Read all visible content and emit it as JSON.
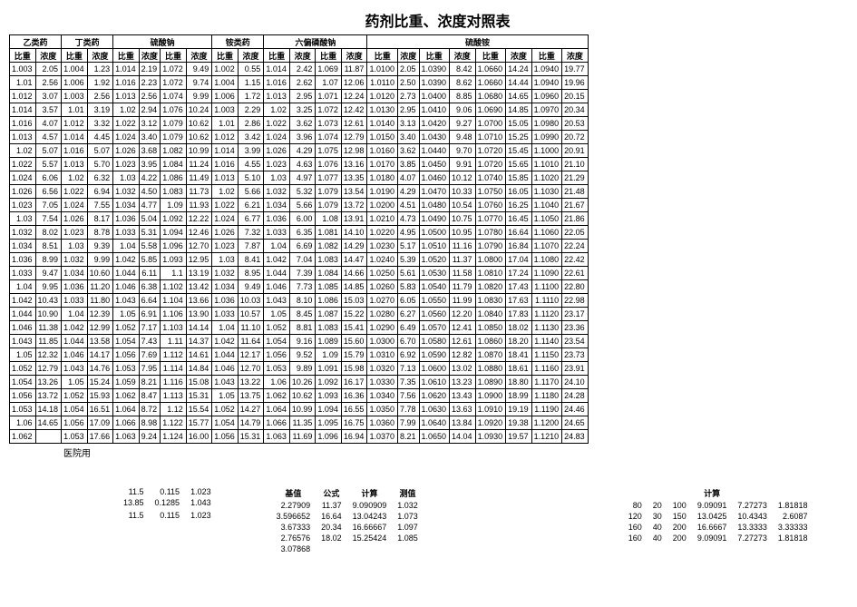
{
  "title": "药剂比重、浓度对照表",
  "footer_note": "医院用",
  "groups": [
    {
      "name": "乙类药",
      "pairs": 1
    },
    {
      "name": "丁类药",
      "pairs": 1
    },
    {
      "name": "硫酸钠",
      "pairs": 2
    },
    {
      "name": "铵类药",
      "pairs": 1
    },
    {
      "name": "六偏磷酸钠",
      "pairs": 2
    },
    {
      "name": "硫酸铵",
      "pairs": 4
    }
  ],
  "sub_headers": [
    "比重",
    "浓度"
  ],
  "rows": [
    [
      "1.003",
      "2.05",
      "1.004",
      "1.23",
      "1.014",
      "2.19",
      "1.072",
      "9.49",
      "1.002",
      "0.55",
      "1.014",
      "2.42",
      "1.069",
      "11.87",
      "1.0100",
      "2.05",
      "1.0390",
      "8.42",
      "1.0660",
      "14.24",
      "1.0940",
      "19.77"
    ],
    [
      "1.01",
      "2.56",
      "1.006",
      "1.92",
      "1.016",
      "2.23",
      "1.072",
      "9.74",
      "1.004",
      "1.15",
      "1.016",
      "2.62",
      "1.07",
      "12.06",
      "1.0110",
      "2.50",
      "1.0390",
      "8.62",
      "1.0660",
      "14.44",
      "1.0940",
      "19.96"
    ],
    [
      "1.012",
      "3.07",
      "1.003",
      "2.56",
      "1.013",
      "2.56",
      "1.074",
      "9.99",
      "1.006",
      "1.72",
      "1.013",
      "2.95",
      "1.071",
      "12.24",
      "1.0120",
      "2.73",
      "1.0400",
      "8.85",
      "1.0680",
      "14.65",
      "1.0960",
      "20.15"
    ],
    [
      "1.014",
      "3.57",
      "1.01",
      "3.19",
      "1.02",
      "2.94",
      "1.076",
      "10.24",
      "1.003",
      "2.29",
      "1.02",
      "3.25",
      "1.072",
      "12.42",
      "1.0130",
      "2.95",
      "1.0410",
      "9.06",
      "1.0690",
      "14.85",
      "1.0970",
      "20.34"
    ],
    [
      "1.016",
      "4.07",
      "1.012",
      "3.32",
      "1.022",
      "3.12",
      "1.079",
      "10.62",
      "1.01",
      "2.86",
      "1.022",
      "3.62",
      "1.073",
      "12.61",
      "1.0140",
      "3.13",
      "1.0420",
      "9.27",
      "1.0700",
      "15.05",
      "1.0980",
      "20.53"
    ],
    [
      "1.013",
      "4.57",
      "1.014",
      "4.45",
      "1.024",
      "3.40",
      "1.079",
      "10.62",
      "1.012",
      "3.42",
      "1.024",
      "3.96",
      "1.074",
      "12.79",
      "1.0150",
      "3.40",
      "1.0430",
      "9.48",
      "1.0710",
      "15.25",
      "1.0990",
      "20.72"
    ],
    [
      "1.02",
      "5.07",
      "1.016",
      "5.07",
      "1.026",
      "3.68",
      "1.082",
      "10.99",
      "1.014",
      "3.99",
      "1.026",
      "4.29",
      "1.075",
      "12.98",
      "1.0160",
      "3.62",
      "1.0440",
      "9.70",
      "1.0720",
      "15.45",
      "1.1000",
      "20.91"
    ],
    [
      "1.022",
      "5.57",
      "1.013",
      "5.70",
      "1.023",
      "3.95",
      "1.084",
      "11.24",
      "1.016",
      "4.55",
      "1.023",
      "4.63",
      "1.076",
      "13.16",
      "1.0170",
      "3.85",
      "1.0450",
      "9.91",
      "1.0720",
      "15.65",
      "1.1010",
      "21.10"
    ],
    [
      "1.024",
      "6.06",
      "1.02",
      "6.32",
      "1.03",
      "4.22",
      "1.086",
      "11.49",
      "1.013",
      "5.10",
      "1.03",
      "4.97",
      "1.077",
      "13.35",
      "1.0180",
      "4.07",
      "1.0460",
      "10.12",
      "1.0740",
      "15.85",
      "1.1020",
      "21.29"
    ],
    [
      "1.026",
      "6.56",
      "1.022",
      "6.94",
      "1.032",
      "4.50",
      "1.083",
      "11.73",
      "1.02",
      "5.66",
      "1.032",
      "5.32",
      "1.079",
      "13.54",
      "1.0190",
      "4.29",
      "1.0470",
      "10.33",
      "1.0750",
      "16.05",
      "1.1030",
      "21.48"
    ],
    [
      "1.023",
      "7.05",
      "1.024",
      "7.55",
      "1.034",
      "4.77",
      "1.09",
      "11.93",
      "1.022",
      "6.21",
      "1.034",
      "5.66",
      "1.079",
      "13.72",
      "1.0200",
      "4.51",
      "1.0480",
      "10.54",
      "1.0760",
      "16.25",
      "1.1040",
      "21.67"
    ],
    [
      "1.03",
      "7.54",
      "1.026",
      "8.17",
      "1.036",
      "5.04",
      "1.092",
      "12.22",
      "1.024",
      "6.77",
      "1.036",
      "6.00",
      "1.08",
      "13.91",
      "1.0210",
      "4.73",
      "1.0490",
      "10.75",
      "1.0770",
      "16.45",
      "1.1050",
      "21.86"
    ],
    [
      "1.032",
      "8.02",
      "1.023",
      "8.78",
      "1.033",
      "5.31",
      "1.094",
      "12.46",
      "1.026",
      "7.32",
      "1.033",
      "6.35",
      "1.081",
      "14.10",
      "1.0220",
      "4.95",
      "1.0500",
      "10.95",
      "1.0780",
      "16.64",
      "1.1060",
      "22.05"
    ],
    [
      "1.034",
      "8.51",
      "1.03",
      "9.39",
      "1.04",
      "5.58",
      "1.096",
      "12.70",
      "1.023",
      "7.87",
      "1.04",
      "6.69",
      "1.082",
      "14.29",
      "1.0230",
      "5.17",
      "1.0510",
      "11.16",
      "1.0790",
      "16.84",
      "1.1070",
      "22.24"
    ],
    [
      "1.036",
      "8.99",
      "1.032",
      "9.99",
      "1.042",
      "5.85",
      "1.093",
      "12.95",
      "1.03",
      "8.41",
      "1.042",
      "7.04",
      "1.083",
      "14.47",
      "1.0240",
      "5.39",
      "1.0520",
      "11.37",
      "1.0800",
      "17.04",
      "1.1080",
      "22.42"
    ],
    [
      "1.033",
      "9.47",
      "1.034",
      "10.60",
      "1.044",
      "6.11",
      "1.1",
      "13.19",
      "1.032",
      "8.95",
      "1.044",
      "7.39",
      "1.084",
      "14.66",
      "1.0250",
      "5.61",
      "1.0530",
      "11.58",
      "1.0810",
      "17.24",
      "1.1090",
      "22.61"
    ],
    [
      "1.04",
      "9.95",
      "1.036",
      "11.20",
      "1.046",
      "6.38",
      "1.102",
      "13.42",
      "1.034",
      "9.49",
      "1.046",
      "7.73",
      "1.085",
      "14.85",
      "1.0260",
      "5.83",
      "1.0540",
      "11.79",
      "1.0820",
      "17.43",
      "1.1100",
      "22.80"
    ],
    [
      "1.042",
      "10.43",
      "1.033",
      "11.80",
      "1.043",
      "6.64",
      "1.104",
      "13.66",
      "1.036",
      "10.03",
      "1.043",
      "8.10",
      "1.086",
      "15.03",
      "1.0270",
      "6.05",
      "1.0550",
      "11.99",
      "1.0830",
      "17.63",
      "1.1110",
      "22.98"
    ],
    [
      "1.044",
      "10.90",
      "1.04",
      "12.39",
      "1.05",
      "6.91",
      "1.106",
      "13.90",
      "1.033",
      "10.57",
      "1.05",
      "8.45",
      "1.087",
      "15.22",
      "1.0280",
      "6.27",
      "1.0560",
      "12.20",
      "1.0840",
      "17.83",
      "1.1120",
      "23.17"
    ],
    [
      "1.046",
      "11.38",
      "1.042",
      "12.99",
      "1.052",
      "7.17",
      "1.103",
      "14.14",
      "1.04",
      "11.10",
      "1.052",
      "8.81",
      "1.083",
      "15.41",
      "1.0290",
      "6.49",
      "1.0570",
      "12.41",
      "1.0850",
      "18.02",
      "1.1130",
      "23.36"
    ],
    [
      "1.043",
      "11.85",
      "1.044",
      "13.58",
      "1.054",
      "7.43",
      "1.11",
      "14.37",
      "1.042",
      "11.64",
      "1.054",
      "9.16",
      "1.089",
      "15.60",
      "1.0300",
      "6.70",
      "1.0580",
      "12.61",
      "1.0860",
      "18.20",
      "1.1140",
      "23.54"
    ],
    [
      "1.05",
      "12.32",
      "1.046",
      "14.17",
      "1.056",
      "7.69",
      "1.112",
      "14.61",
      "1.044",
      "12.17",
      "1.056",
      "9.52",
      "1.09",
      "15.79",
      "1.0310",
      "6.92",
      "1.0590",
      "12.82",
      "1.0870",
      "18.41",
      "1.1150",
      "23.73"
    ],
    [
      "1.052",
      "12.79",
      "1.043",
      "14.76",
      "1.053",
      "7.95",
      "1.114",
      "14.84",
      "1.046",
      "12.70",
      "1.053",
      "9.89",
      "1.091",
      "15.98",
      "1.0320",
      "7.13",
      "1.0600",
      "13.02",
      "1.0880",
      "18.61",
      "1.1160",
      "23.91"
    ],
    [
      "1.054",
      "13.26",
      "1.05",
      "15.24",
      "1.059",
      "8.21",
      "1.116",
      "15.08",
      "1.043",
      "13.22",
      "1.06",
      "10.26",
      "1.092",
      "16.17",
      "1.0330",
      "7.35",
      "1.0610",
      "13.23",
      "1.0890",
      "18.80",
      "1.1170",
      "24.10"
    ],
    [
      "1.056",
      "13.72",
      "1.052",
      "15.93",
      "1.062",
      "8.47",
      "1.113",
      "15.31",
      "1.05",
      "13.75",
      "1.062",
      "10.62",
      "1.093",
      "16.36",
      "1.0340",
      "7.56",
      "1.0620",
      "13.43",
      "1.0900",
      "18.99",
      "1.1180",
      "24.28"
    ],
    [
      "1.053",
      "14.18",
      "1.054",
      "16.51",
      "1.064",
      "8.72",
      "1.12",
      "15.54",
      "1.052",
      "14.27",
      "1.064",
      "10.99",
      "1.094",
      "16.55",
      "1.0350",
      "7.78",
      "1.0630",
      "13.63",
      "1.0910",
      "19.19",
      "1.1190",
      "24.46"
    ],
    [
      "1.06",
      "14.65",
      "1.056",
      "17.09",
      "1.066",
      "8.98",
      "1.122",
      "15.77",
      "1.054",
      "14.79",
      "1.066",
      "11.35",
      "1.095",
      "16.75",
      "1.0360",
      "7.99",
      "1.0640",
      "13.84",
      "1.0920",
      "19.38",
      "1.1200",
      "24.65"
    ],
    [
      "1.062",
      "",
      "1.053",
      "17.66",
      "1.063",
      "9.24",
      "1.124",
      "16.00",
      "1.056",
      "15.31",
      "1.063",
      "11.69",
      "1.096",
      "16.94",
      "1.0370",
      "8.21",
      "1.0650",
      "14.04",
      "1.0930",
      "19.57",
      "1.1210",
      "24.83"
    ]
  ],
  "lower_left": {
    "headers": [
      "",
      "",
      ""
    ],
    "rows": [
      [
        "11.5",
        "0.115",
        "1.023"
      ],
      [
        "13.85",
        "0.1285",
        "1.043"
      ],
      [
        "",
        "",
        ""
      ],
      [
        "11.5",
        "0.115",
        "1.023"
      ]
    ]
  },
  "lower_mid": {
    "headers": [
      "基值",
      "公式",
      "计算",
      "测值"
    ],
    "rows": [
      [
        "2.27909",
        "11.37",
        "9.090909",
        "1.032"
      ],
      [
        "3.596652",
        "16.64",
        "13.04243",
        "1.073"
      ],
      [
        "3.67333",
        "20.34",
        "16.66667",
        "1.097"
      ],
      [
        "2.76576",
        "18.02",
        "15.25424",
        "1.085"
      ],
      [
        "3.07868",
        "",
        "",
        ""
      ]
    ]
  },
  "lower_right": {
    "headers": [
      "",
      "",
      "",
      "计算",
      "",
      ""
    ],
    "rows": [
      [
        "80",
        "20",
        "100",
        "9.09091",
        "7.27273",
        "1.81818"
      ],
      [
        "120",
        "30",
        "150",
        "13.0425",
        "10.4343",
        "2.6087"
      ],
      [
        "160",
        "40",
        "200",
        "16.6667",
        "13.3333",
        "3.33333"
      ],
      [
        "160",
        "40",
        "200",
        "9.09091",
        "7.27273",
        "1.81818"
      ]
    ]
  }
}
